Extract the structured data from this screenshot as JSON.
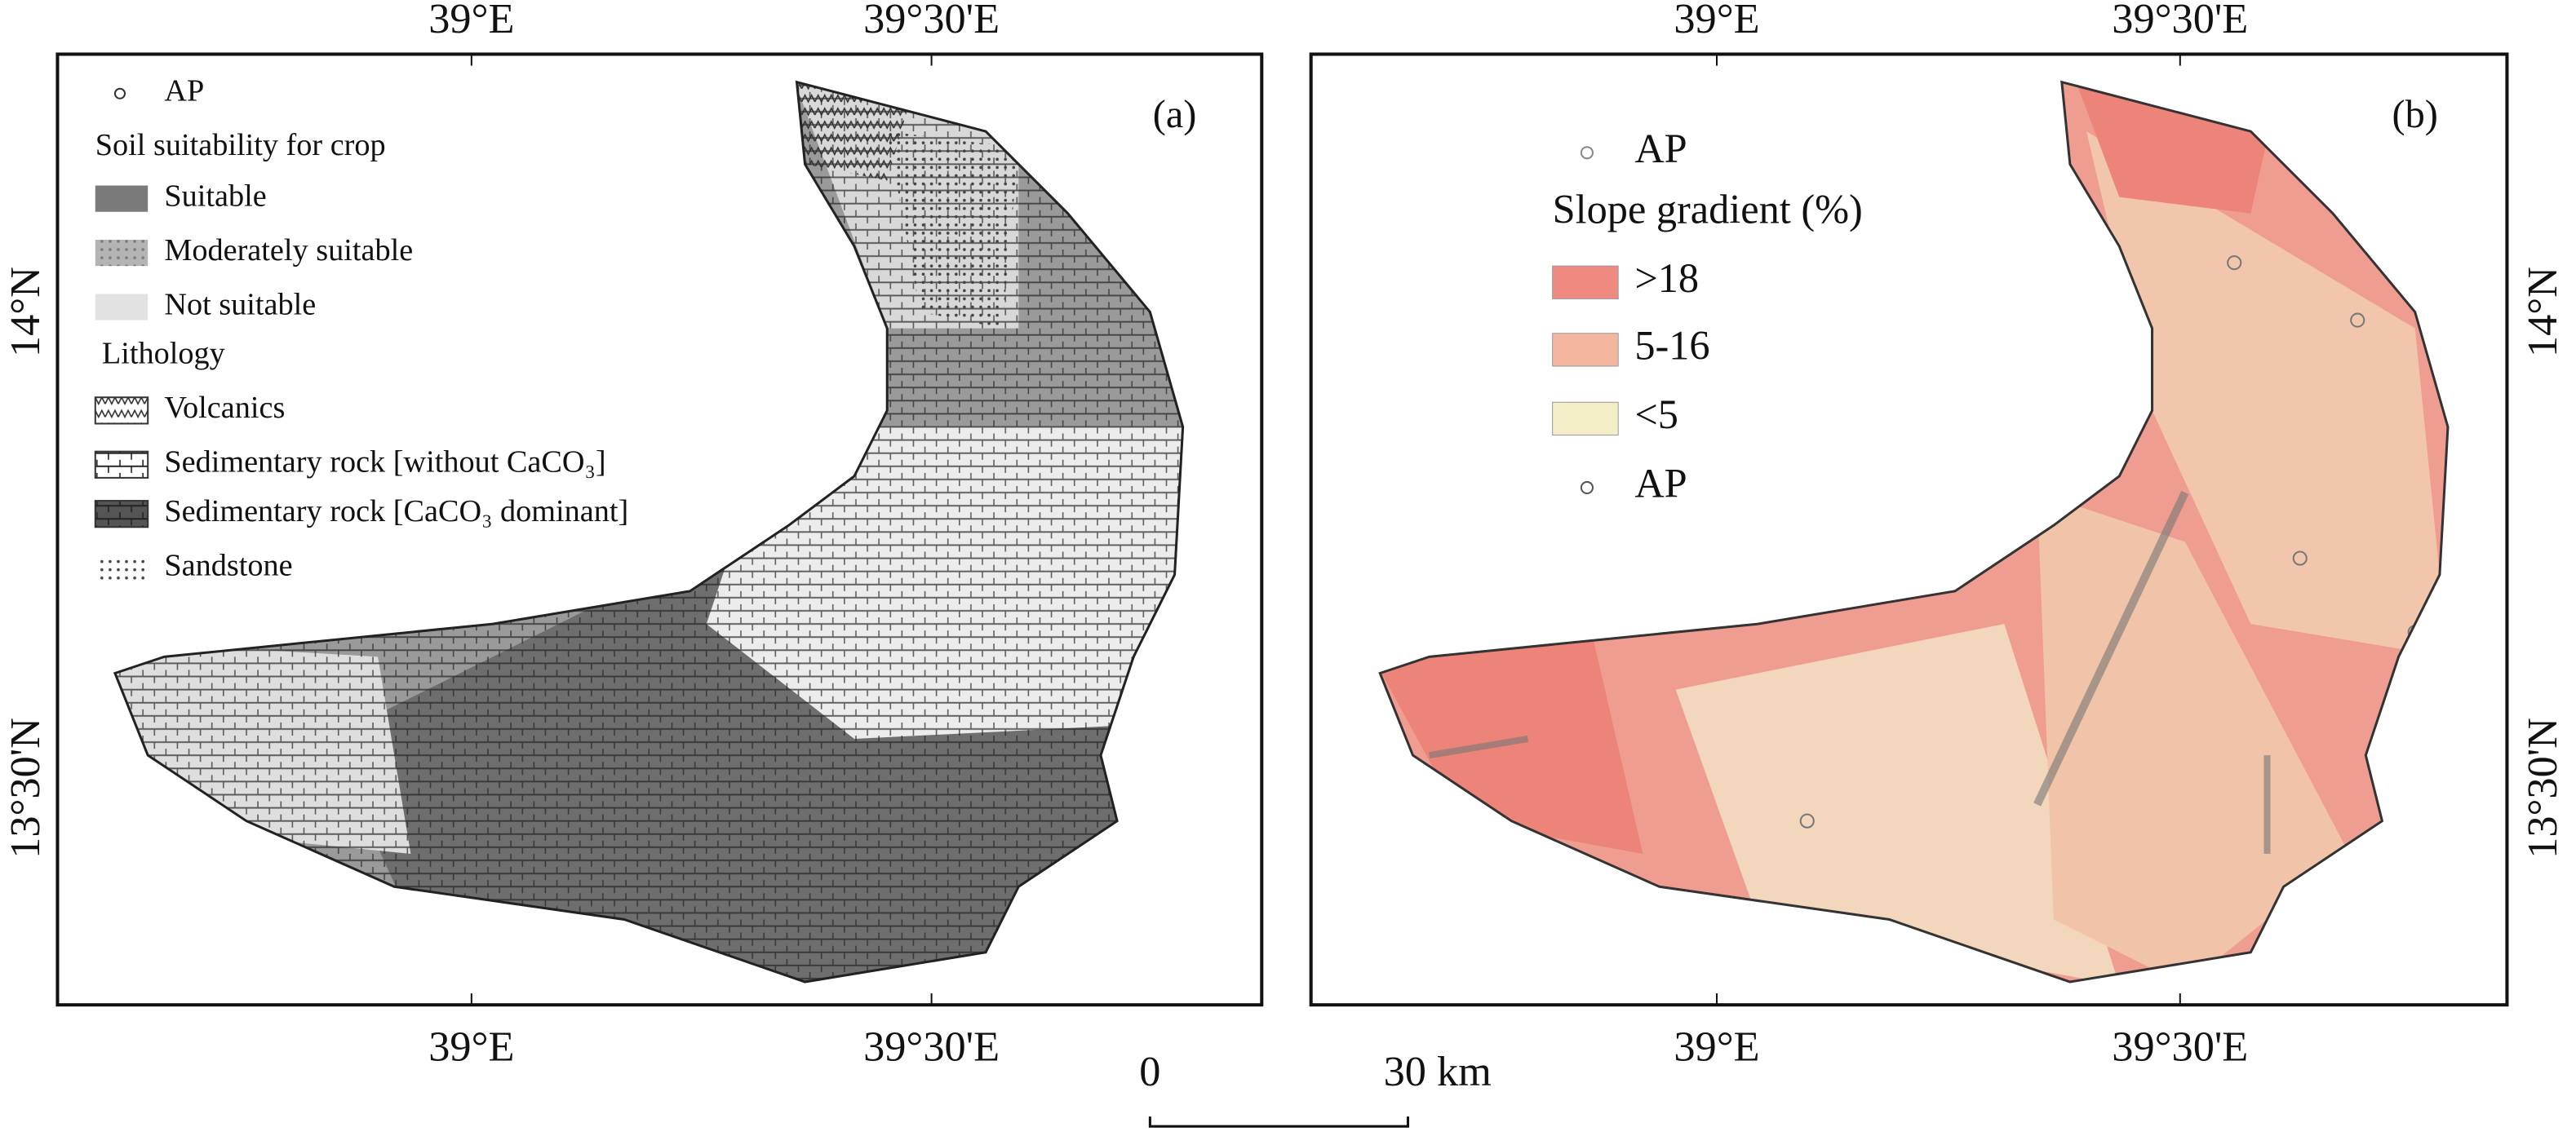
{
  "panels": [
    {
      "label": "(a)",
      "top_labels": [
        "39°E",
        "39°30'E"
      ],
      "bottom_labels": [
        "39°E",
        "39°30'E"
      ],
      "side_labels": [
        "14°N",
        "13°30'N"
      ],
      "legend": {
        "ap": "AP",
        "soil_title": "Soil suitability for crop",
        "soil_classes": [
          "Suitable",
          "Moderately suitable",
          "Not suitable"
        ],
        "lithology_title": "Lithology",
        "lithology_classes": [
          "Volcanics",
          "Sedimentary rock [without CaCO₃]",
          "Sedimentary rock [CaCO₃ dominant]",
          "Sandstone"
        ]
      }
    },
    {
      "label": "(b)",
      "top_labels": [
        "39°E",
        "39°30'E"
      ],
      "bottom_labels": [
        "39°E",
        "39°30'E"
      ],
      "side_labels": [
        "14°N",
        "13°30'N"
      ],
      "legend": {
        "ap_top": "AP",
        "slope_title": "Slope gradient (%)",
        "slope_classes": [
          ">18",
          "5-16",
          "<5"
        ],
        "ap_bottom": "AP"
      }
    }
  ],
  "scale_bar": {
    "start": "0",
    "end": "30 km"
  }
}
